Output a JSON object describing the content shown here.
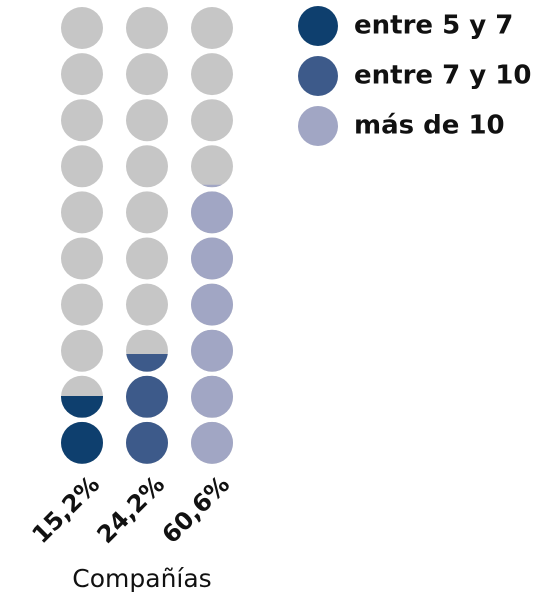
{
  "chart_data": {
    "type": "dot-columns",
    "x_label": "Compañías",
    "ylim": [
      0,
      100
    ],
    "empty_color": "#c6c6c6",
    "series": [
      {
        "name": "entre 5 y 7",
        "color": "#0e3f6e",
        "values": [
          15.2
        ],
        "value_labels": [
          "15,2%"
        ]
      },
      {
        "name": "entre 7 y 10",
        "color": "#3d5a8a",
        "values": [
          24.2
        ],
        "value_labels": [
          "24,2%"
        ]
      },
      {
        "name": "más de 10",
        "color": "#a1a6c4",
        "values": [
          60.6
        ],
        "value_labels": [
          "60,6%"
        ]
      }
    ]
  }
}
